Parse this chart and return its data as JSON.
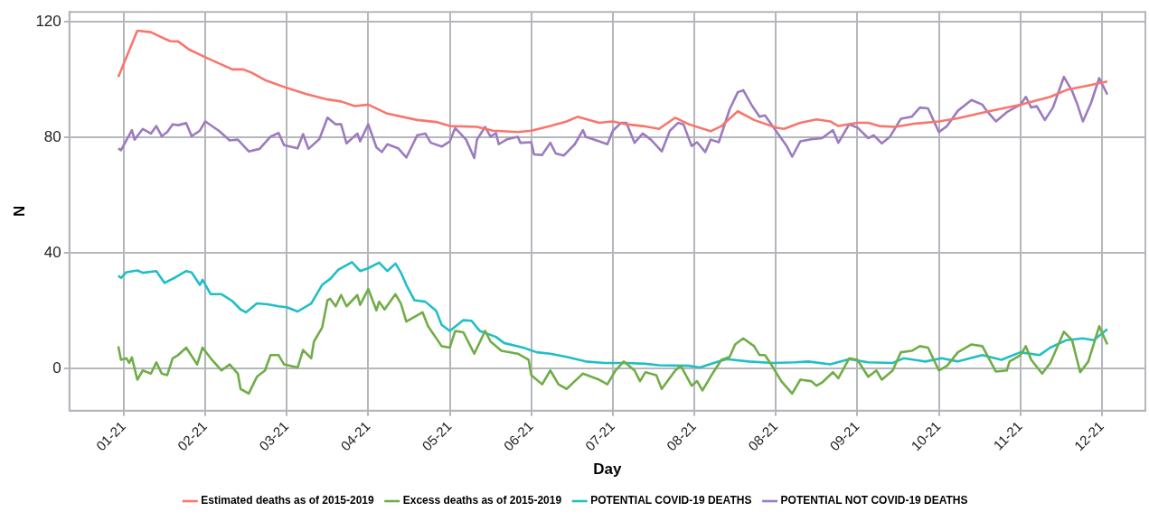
{
  "chart_data": {
    "type": "line",
    "xlabel": "Day",
    "ylabel": "N",
    "xlim": [
      "2020-12-14",
      "2022-01-14"
    ],
    "ylim": [
      -14.5,
      123.5
    ],
    "xticks": [
      {
        "value": "2021-01-03",
        "label": "01-21"
      },
      {
        "value": "2021-02-02",
        "label": "02-21"
      },
      {
        "value": "2021-03-04",
        "label": "03-21"
      },
      {
        "value": "2021-04-03",
        "label": "04-21"
      },
      {
        "value": "2021-05-03",
        "label": "05-21"
      },
      {
        "value": "2021-06-02",
        "label": "06-21"
      },
      {
        "value": "2021-07-02",
        "label": "07-21"
      },
      {
        "value": "2021-08-01",
        "label": "08-21"
      },
      {
        "value": "2021-08-31",
        "label": "08-21"
      },
      {
        "value": "2021-09-30",
        "label": "09-21"
      },
      {
        "value": "2021-10-30",
        "label": "10-21"
      },
      {
        "value": "2021-11-29",
        "label": "11-21"
      },
      {
        "value": "2021-12-29",
        "label": "12-21"
      }
    ],
    "yticks": [
      0,
      40,
      80,
      120
    ],
    "grid": true,
    "legend": "bottom",
    "marker": "none",
    "line_style": "solid",
    "series": [
      {
        "name": "Estimated deaths as of 2015-2019",
        "color": "#f8766d",
        "x": [
          "2021-01-01",
          "2021-01-08",
          "2021-01-13",
          "2021-01-17",
          "2021-01-20",
          "2021-01-23",
          "2021-01-27",
          "2021-02-02",
          "2021-02-07",
          "2021-02-12",
          "2021-02-16",
          "2021-02-19",
          "2021-02-24",
          "2021-03-04",
          "2021-03-11",
          "2021-03-19",
          "2021-03-24",
          "2021-03-29",
          "2021-04-03",
          "2021-04-10",
          "2021-04-21",
          "2021-04-28",
          "2021-05-03",
          "2021-05-13",
          "2021-05-19",
          "2021-05-28",
          "2021-06-02",
          "2021-06-09",
          "2021-06-15",
          "2021-06-19",
          "2021-06-27",
          "2021-07-02",
          "2021-07-07",
          "2021-07-13",
          "2021-07-19",
          "2021-07-25",
          "2021-07-30",
          "2021-08-07",
          "2021-08-11",
          "2021-08-17",
          "2021-08-23",
          "2021-08-31",
          "2021-09-03",
          "2021-09-09",
          "2021-09-15",
          "2021-09-20",
          "2021-09-23",
          "2021-09-30",
          "2021-10-04",
          "2021-10-08",
          "2021-10-14",
          "2021-10-21",
          "2021-10-30",
          "2021-11-06",
          "2021-11-17",
          "2021-11-29",
          "2021-12-10",
          "2021-12-16",
          "2021-12-24",
          "2021-12-31"
        ],
        "values": [
          101,
          117,
          116.5,
          114.7,
          113.4,
          113.3,
          110.5,
          107.8,
          105.7,
          103.6,
          103.6,
          102.5,
          99.9,
          97.2,
          95.1,
          93.2,
          92.5,
          90.9,
          91.4,
          88.3,
          86.1,
          85.4,
          84,
          83.7,
          82.4,
          81.9,
          82.4,
          84,
          85.6,
          87.2,
          85.1,
          85.6,
          84.6,
          84,
          83,
          86.9,
          84.6,
          82.2,
          84,
          89.1,
          86.1,
          83.5,
          83,
          85.1,
          86.3,
          85.6,
          84,
          85.1,
          85.1,
          84,
          83.7,
          84.8,
          85.6,
          86.7,
          89,
          91.4,
          94.1,
          96.5,
          98,
          99.4
        ]
      },
      {
        "name": "Excess deaths as of 2015-2019",
        "color": "#70ad47",
        "x": [
          "2021-01-01",
          "2021-01-02",
          "2021-01-04",
          "2021-01-05",
          "2021-01-06",
          "2021-01-08",
          "2021-01-10",
          "2021-01-13",
          "2021-01-15",
          "2021-01-17",
          "2021-01-19",
          "2021-01-21",
          "2021-01-23",
          "2021-01-26",
          "2021-01-30",
          "2021-02-01",
          "2021-02-04",
          "2021-02-08",
          "2021-02-11",
          "2021-02-14",
          "2021-02-15",
          "2021-02-18",
          "2021-02-21",
          "2021-02-24",
          "2021-02-26",
          "2021-03-01",
          "2021-03-03",
          "2021-03-08",
          "2021-03-10",
          "2021-03-13",
          "2021-03-14",
          "2021-03-17",
          "2021-03-19",
          "2021-03-20",
          "2021-03-22",
          "2021-03-24",
          "2021-03-26",
          "2021-03-30",
          "2021-03-31",
          "2021-04-03",
          "2021-04-06",
          "2021-04-07",
          "2021-04-09",
          "2021-04-13",
          "2021-04-15",
          "2021-04-17",
          "2021-04-19",
          "2021-04-23",
          "2021-04-25",
          "2021-04-30",
          "2021-05-03",
          "2021-05-05",
          "2021-05-08",
          "2021-05-12",
          "2021-05-16",
          "2021-05-18",
          "2021-05-22",
          "2021-05-28",
          "2021-06-01",
          "2021-06-02",
          "2021-06-06",
          "2021-06-09",
          "2021-06-12",
          "2021-06-15",
          "2021-06-18",
          "2021-06-21",
          "2021-06-27",
          "2021-06-30",
          "2021-07-03",
          "2021-07-06",
          "2021-07-10",
          "2021-07-12",
          "2021-07-14",
          "2021-07-18",
          "2021-07-20",
          "2021-07-25",
          "2021-07-27",
          "2021-07-31",
          "2021-08-02",
          "2021-08-04",
          "2021-08-08",
          "2021-08-11",
          "2021-08-14",
          "2021-08-16",
          "2021-08-19",
          "2021-08-23",
          "2021-08-25",
          "2021-08-27",
          "2021-08-30",
          "2021-09-02",
          "2021-09-06",
          "2021-09-09",
          "2021-09-13",
          "2021-09-15",
          "2021-09-17",
          "2021-09-21",
          "2021-09-23",
          "2021-09-27",
          "2021-09-30",
          "2021-10-04",
          "2021-10-07",
          "2021-10-09",
          "2021-10-13",
          "2021-10-16",
          "2021-10-20",
          "2021-10-23",
          "2021-10-26",
          "2021-10-30",
          "2021-11-02",
          "2021-11-06",
          "2021-11-11",
          "2021-11-15",
          "2021-11-20",
          "2021-11-24",
          "2021-11-25",
          "2021-11-29",
          "2021-12-01",
          "2021-12-03",
          "2021-12-07",
          "2021-12-10",
          "2021-12-15",
          "2021-12-18",
          "2021-12-21",
          "2021-12-24",
          "2021-12-28",
          "2021-12-31"
        ],
        "values": [
          7.8,
          3.1,
          3.6,
          2,
          3.9,
          -3.8,
          -0.6,
          -1.7,
          2.2,
          -1.7,
          -2.2,
          3.6,
          4.7,
          7.3,
          1.5,
          7.3,
          3.6,
          -0.6,
          1.5,
          -1.7,
          -7,
          -8.6,
          -2.8,
          -0.6,
          4.7,
          4.7,
          1.5,
          0.4,
          6.5,
          3.6,
          9.4,
          14.2,
          23.7,
          24.2,
          21.6,
          25.5,
          21.6,
          25.5,
          22.1,
          27.6,
          20.2,
          23.2,
          20.5,
          25.8,
          22.6,
          16.3,
          17.4,
          19.5,
          14.7,
          7.8,
          7.3,
          13.1,
          12.6,
          5.2,
          13.1,
          9.4,
          6.2,
          5.2,
          3.1,
          -2.2,
          -5.4,
          -0.6,
          -5.4,
          -7,
          -4.3,
          -1.7,
          -3.8,
          -5.4,
          -0.6,
          2.5,
          -0.6,
          -4.3,
          -1.2,
          -2.2,
          -7,
          -0.6,
          1,
          -5.9,
          -4.3,
          -7.5,
          -1.2,
          3.1,
          4.1,
          8.4,
          10.5,
          7.8,
          4.7,
          4.7,
          0.4,
          -4.3,
          -8.6,
          -3.8,
          -4.3,
          -5.9,
          -4.8,
          -1.2,
          -3.3,
          3.6,
          3.1,
          -2.8,
          -0.6,
          -3.8,
          -0.6,
          5.7,
          6.2,
          7.8,
          7.3,
          -0.6,
          1,
          5.7,
          8.4,
          7.8,
          -1,
          -0.6,
          2.5,
          4.7,
          7.8,
          3.1,
          -1.7,
          2,
          12.8,
          9.9,
          -1.2,
          2.5,
          14.7,
          8.4
        ]
      },
      {
        "name": "POTENTIAL COVID-19 DEATHS",
        "color": "#1fbfc6",
        "x": [
          "2021-01-01",
          "2021-01-02",
          "2021-01-04",
          "2021-01-08",
          "2021-01-10",
          "2021-01-15",
          "2021-01-18",
          "2021-01-22",
          "2021-01-26",
          "2021-01-28",
          "2021-01-31",
          "2021-02-01",
          "2021-02-04",
          "2021-02-08",
          "2021-02-12",
          "2021-02-15",
          "2021-02-17",
          "2021-02-21",
          "2021-02-25",
          "2021-03-01",
          "2021-03-04",
          "2021-03-08",
          "2021-03-13",
          "2021-03-17",
          "2021-03-20",
          "2021-03-23",
          "2021-03-28",
          "2021-03-31",
          "2021-04-03",
          "2021-04-07",
          "2021-04-10",
          "2021-04-13",
          "2021-04-15",
          "2021-04-17",
          "2021-04-20",
          "2021-04-24",
          "2021-04-28",
          "2021-04-30",
          "2021-05-03",
          "2021-05-08",
          "2021-05-11",
          "2021-05-14",
          "2021-05-20",
          "2021-05-23",
          "2021-05-30",
          "2021-06-04",
          "2021-06-09",
          "2021-06-15",
          "2021-06-22",
          "2021-06-29",
          "2021-07-07",
          "2021-07-14",
          "2021-07-19",
          "2021-07-30",
          "2021-08-03",
          "2021-08-10",
          "2021-08-13",
          "2021-08-21",
          "2021-08-30",
          "2021-09-07",
          "2021-09-12",
          "2021-09-20",
          "2021-09-27",
          "2021-10-04",
          "2021-10-13",
          "2021-10-17",
          "2021-10-25",
          "2021-10-31",
          "2021-11-06",
          "2021-11-15",
          "2021-11-22",
          "2021-11-29",
          "2021-12-06",
          "2021-12-10",
          "2021-12-16",
          "2021-12-22",
          "2021-12-26",
          "2021-12-31"
        ],
        "values": [
          32.2,
          31.4,
          33.4,
          34,
          33.2,
          33.8,
          29.7,
          31.6,
          33.8,
          33.3,
          29,
          30.8,
          25.8,
          25.8,
          23.4,
          20.5,
          19.5,
          22.6,
          22.3,
          21.6,
          21.3,
          19.8,
          22.6,
          29,
          31.1,
          34.3,
          36.9,
          33.8,
          34.8,
          36.7,
          33.8,
          36.4,
          33.3,
          29,
          23.7,
          23.2,
          20,
          15.2,
          13.1,
          16.8,
          16.6,
          13.1,
          11,
          8.9,
          7.3,
          5.7,
          5.2,
          4.1,
          2.5,
          2,
          2,
          1.7,
          1.2,
          1,
          0.4,
          2.5,
          3.3,
          2.5,
          2,
          2.2,
          2.5,
          1.5,
          3.3,
          2.2,
          2,
          3.6,
          2.5,
          3.6,
          2.5,
          4.7,
          3.1,
          5.7,
          4.7,
          7.3,
          9.9,
          10.5,
          9.9,
          13.7
        ]
      },
      {
        "name": "POTENTIAL NOT COVID-19 DEATHS",
        "color": "#9c7bbf",
        "x": [
          "2021-01-01",
          "2021-01-02",
          "2021-01-06",
          "2021-01-07",
          "2021-01-10",
          "2021-01-13",
          "2021-01-15",
          "2021-01-17",
          "2021-01-19",
          "2021-01-21",
          "2021-01-23",
          "2021-01-26",
          "2021-01-28",
          "2021-01-31",
          "2021-02-02",
          "2021-02-07",
          "2021-02-11",
          "2021-02-14",
          "2021-02-18",
          "2021-02-22",
          "2021-02-26",
          "2021-03-01",
          "2021-03-03",
          "2021-03-08",
          "2021-03-10",
          "2021-03-12",
          "2021-03-16",
          "2021-03-19",
          "2021-03-22",
          "2021-03-24",
          "2021-03-26",
          "2021-03-30",
          "2021-03-31",
          "2021-04-03",
          "2021-04-06",
          "2021-04-08",
          "2021-04-10",
          "2021-04-14",
          "2021-04-17",
          "2021-04-21",
          "2021-04-24",
          "2021-04-26",
          "2021-04-30",
          "2021-05-03",
          "2021-05-05",
          "2021-05-09",
          "2021-05-12",
          "2021-05-13",
          "2021-05-16",
          "2021-05-18",
          "2021-05-20",
          "2021-05-21",
          "2021-05-24",
          "2021-05-28",
          "2021-05-29",
          "2021-06-02",
          "2021-06-03",
          "2021-06-06",
          "2021-06-09",
          "2021-06-11",
          "2021-06-14",
          "2021-06-18",
          "2021-06-21",
          "2021-06-22",
          "2021-06-27",
          "2021-06-30",
          "2021-07-02",
          "2021-07-05",
          "2021-07-07",
          "2021-07-10",
          "2021-07-13",
          "2021-07-16",
          "2021-07-20",
          "2021-07-23",
          "2021-07-26",
          "2021-07-28",
          "2021-07-31",
          "2021-08-02",
          "2021-08-05",
          "2021-08-07",
          "2021-08-10",
          "2021-08-14",
          "2021-08-17",
          "2021-08-19",
          "2021-08-22",
          "2021-08-25",
          "2021-08-27",
          "2021-08-31",
          "2021-09-04",
          "2021-09-06",
          "2021-09-09",
          "2021-09-13",
          "2021-09-17",
          "2021-09-21",
          "2021-09-23",
          "2021-09-27",
          "2021-09-30",
          "2021-10-04",
          "2021-10-06",
          "2021-10-09",
          "2021-10-12",
          "2021-10-16",
          "2021-10-20",
          "2021-10-23",
          "2021-10-26",
          "2021-10-30",
          "2021-11-02",
          "2021-11-06",
          "2021-11-11",
          "2021-11-15",
          "2021-11-17",
          "2021-11-20",
          "2021-11-24",
          "2021-11-29",
          "2021-12-01",
          "2021-12-03",
          "2021-12-05",
          "2021-12-08",
          "2021-12-11",
          "2021-12-15",
          "2021-12-18",
          "2021-12-20",
          "2021-12-22",
          "2021-12-25",
          "2021-12-28",
          "2021-12-31"
        ],
        "values": [
          76.3,
          75.6,
          82.6,
          79.3,
          83,
          81.4,
          84,
          80.5,
          81.9,
          84.6,
          84.3,
          85,
          80.5,
          82.4,
          85.6,
          82.4,
          79,
          79.3,
          75.2,
          76.1,
          80.3,
          81.6,
          77.4,
          76.3,
          81.2,
          76.1,
          79.5,
          86.9,
          84.6,
          84.6,
          78,
          81.4,
          78.7,
          84.6,
          76.6,
          75,
          77.7,
          76.3,
          73.1,
          80.8,
          81.4,
          78.2,
          76.9,
          78.7,
          83.3,
          79.3,
          72.9,
          79.3,
          83.7,
          80.3,
          81.6,
          77.7,
          79.4,
          80.3,
          78.2,
          78.4,
          74.2,
          74,
          78.2,
          74.5,
          73.8,
          77.7,
          82.6,
          80.3,
          78.7,
          77.7,
          82.4,
          85.1,
          85.1,
          78.2,
          81.4,
          79.3,
          75.2,
          82.4,
          85.1,
          84.6,
          77.1,
          78.4,
          75,
          79.3,
          78.4,
          89.8,
          95.7,
          96.4,
          91.4,
          87.2,
          87.7,
          82.4,
          77.1,
          73.4,
          78.7,
          79.4,
          79.8,
          82.6,
          78.2,
          84.6,
          83.5,
          79.8,
          80.8,
          78,
          80.3,
          86.5,
          87.2,
          90.4,
          90.1,
          81.9,
          84,
          89.3,
          93,
          91.4,
          88.8,
          85.6,
          88.8,
          91.4,
          94.1,
          90.4,
          90.9,
          86.1,
          90.4,
          101,
          96.2,
          91.4,
          85.6,
          92,
          100.6,
          94.9
        ]
      }
    ]
  }
}
